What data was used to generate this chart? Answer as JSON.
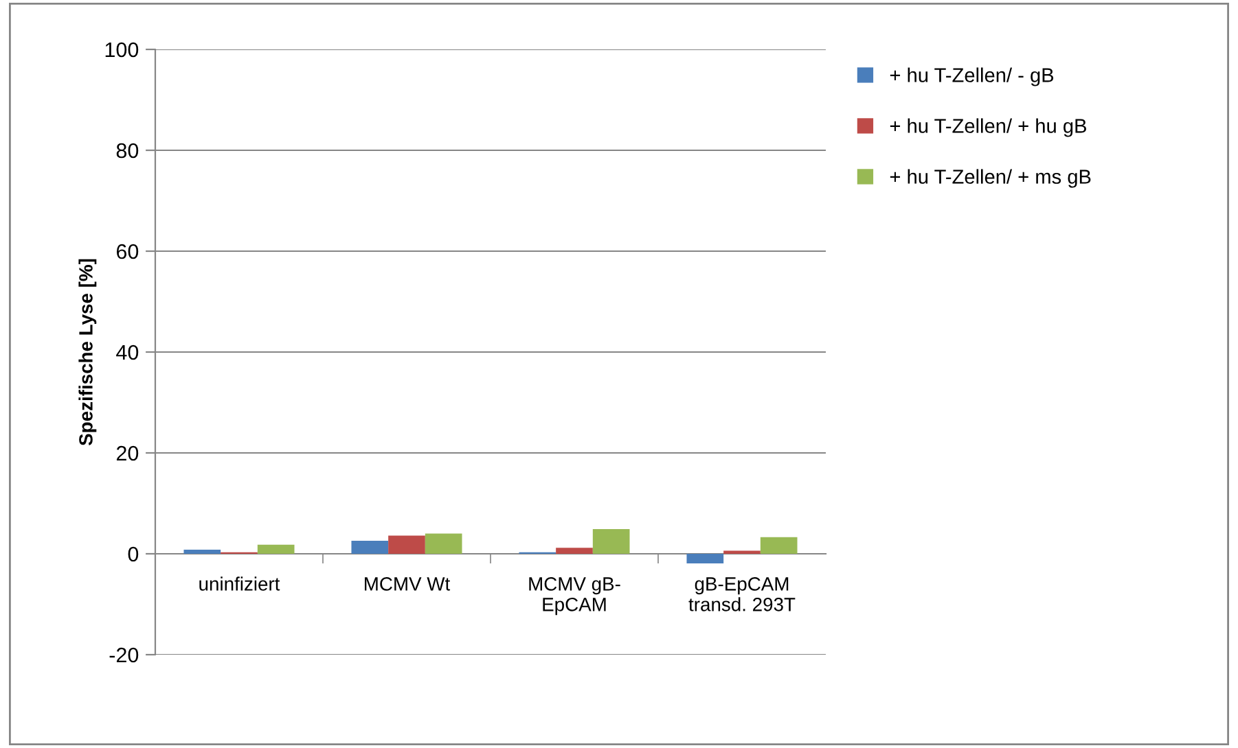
{
  "chart_data": {
    "type": "bar",
    "ylabel": "Spezifische Lyse [%]",
    "categories": [
      "uninfiziert",
      "MCMV Wt",
      "MCMV gB-\nEpCAM",
      "gB-EpCAM\ntransd. 293T"
    ],
    "series": [
      {
        "name": "+ hu T-Zellen/ - gB",
        "color": "#4a7ebb",
        "values": [
          0.8,
          2.6,
          0.3,
          -1.9
        ]
      },
      {
        "name": "+ hu T-Zellen/ + hu gB",
        "color": "#be4b48",
        "values": [
          0.3,
          3.6,
          1.2,
          0.6
        ]
      },
      {
        "name": "+ hu T-Zellen/ + ms gB",
        "color": "#98b954",
        "values": [
          1.8,
          4.0,
          4.9,
          3.3
        ]
      }
    ],
    "ylim": [
      -20,
      100
    ],
    "yticks": [
      -20,
      0,
      20,
      40,
      60,
      80,
      100
    ],
    "grid": "y",
    "legend": "top right"
  }
}
